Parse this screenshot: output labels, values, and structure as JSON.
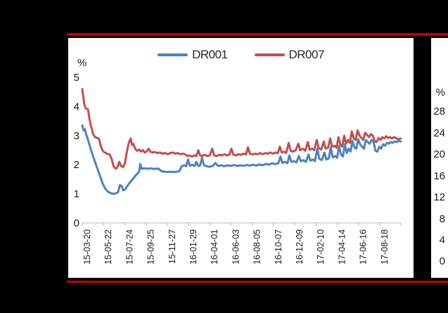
{
  "page": {
    "background": "#000000",
    "rule_color": "#CC0000"
  },
  "legend": {
    "items": [
      {
        "label": "DR001",
        "color": "#4F81BD"
      },
      {
        "label": "DR007",
        "color": "#C0504D"
      }
    ]
  },
  "left_chart": {
    "unit_label": "%"
  },
  "right_chart_fragment": {
    "unit_label": "%",
    "ticks": [
      "28",
      "24",
      "20",
      "16",
      "12",
      "8",
      "4",
      "0"
    ]
  },
  "chart_data": {
    "type": "line",
    "title": "",
    "ylabel": "%",
    "ylim": [
      0,
      5
    ],
    "grid": false,
    "legend_position": "top-center",
    "axis_color": "#C6C6C6",
    "y_axis": {
      "ticks": [
        0,
        1,
        2,
        3,
        4,
        5
      ]
    },
    "x_axis": {
      "type": "date-category",
      "range": [
        "15-03-20",
        "17-08-18"
      ],
      "tick_labels": [
        "15-03-20",
        "15-05-22",
        "15-07-24",
        "15-09-25",
        "15-11-27",
        "16-01-29",
        "16-04-01",
        "16-06-03",
        "16-08-05",
        "16-10-07",
        "16-12-09",
        "17-02-10",
        "17-04-14",
        "17-06-16",
        "17-08-18"
      ]
    },
    "series": [
      {
        "name": "DR001",
        "color": "#4F81BD",
        "points": [
          [
            0.0,
            3.35
          ],
          [
            0.004,
            3.18
          ],
          [
            0.008,
            3.22
          ],
          [
            0.012,
            3.05
          ],
          [
            0.018,
            2.85
          ],
          [
            0.025,
            2.6
          ],
          [
            0.032,
            2.35
          ],
          [
            0.04,
            2.1
          ],
          [
            0.048,
            1.85
          ],
          [
            0.056,
            1.6
          ],
          [
            0.064,
            1.35
          ],
          [
            0.072,
            1.18
          ],
          [
            0.08,
            1.08
          ],
          [
            0.09,
            1.02
          ],
          [
            0.1,
            1.0
          ],
          [
            0.108,
            1.03
          ],
          [
            0.112,
            1.05
          ],
          [
            0.118,
            1.3
          ],
          [
            0.124,
            1.26
          ],
          [
            0.128,
            1.12
          ],
          [
            0.135,
            1.16
          ],
          [
            0.142,
            1.28
          ],
          [
            0.15,
            1.4
          ],
          [
            0.158,
            1.5
          ],
          [
            0.165,
            1.6
          ],
          [
            0.172,
            1.68
          ],
          [
            0.178,
            1.75
          ],
          [
            0.182,
            2.03
          ],
          [
            0.186,
            1.86
          ],
          [
            0.195,
            1.88
          ],
          [
            0.205,
            1.86
          ],
          [
            0.215,
            1.88
          ],
          [
            0.225,
            1.85
          ],
          [
            0.232,
            1.87
          ],
          [
            0.24,
            1.86
          ],
          [
            0.248,
            1.78
          ],
          [
            0.258,
            1.76
          ],
          [
            0.268,
            1.75
          ],
          [
            0.278,
            1.76
          ],
          [
            0.288,
            1.75
          ],
          [
            0.298,
            1.76
          ],
          [
            0.305,
            1.78
          ],
          [
            0.312,
            1.95
          ],
          [
            0.32,
            1.98
          ],
          [
            0.326,
            1.95
          ],
          [
            0.332,
            2.18
          ],
          [
            0.338,
            1.96
          ],
          [
            0.345,
            2.0
          ],
          [
            0.352,
            1.96
          ],
          [
            0.358,
            2.1
          ],
          [
            0.364,
            1.96
          ],
          [
            0.37,
            1.98
          ],
          [
            0.376,
            2.24
          ],
          [
            0.382,
            1.98
          ],
          [
            0.39,
            1.95
          ],
          [
            0.4,
            1.93
          ],
          [
            0.41,
            1.96
          ],
          [
            0.418,
            2.06
          ],
          [
            0.426,
            1.96
          ],
          [
            0.436,
            1.98
          ],
          [
            0.446,
            1.95
          ],
          [
            0.456,
            1.98
          ],
          [
            0.466,
            1.96
          ],
          [
            0.476,
            1.99
          ],
          [
            0.486,
            1.96
          ],
          [
            0.496,
            1.98
          ],
          [
            0.506,
            1.96
          ],
          [
            0.516,
            1.99
          ],
          [
            0.526,
            1.97
          ],
          [
            0.536,
            2.0
          ],
          [
            0.546,
            1.97
          ],
          [
            0.556,
            2.01
          ],
          [
            0.566,
            1.98
          ],
          [
            0.576,
            2.03
          ],
          [
            0.586,
            2.0
          ],
          [
            0.596,
            2.05
          ],
          [
            0.606,
            2.02
          ],
          [
            0.616,
            2.06
          ],
          [
            0.622,
            2.28
          ],
          [
            0.628,
            2.06
          ],
          [
            0.636,
            2.1
          ],
          [
            0.644,
            2.05
          ],
          [
            0.65,
            2.32
          ],
          [
            0.656,
            2.1
          ],
          [
            0.664,
            2.12
          ],
          [
            0.672,
            2.08
          ],
          [
            0.68,
            2.3
          ],
          [
            0.686,
            2.12
          ],
          [
            0.694,
            2.16
          ],
          [
            0.702,
            2.1
          ],
          [
            0.71,
            2.35
          ],
          [
            0.716,
            2.14
          ],
          [
            0.724,
            2.18
          ],
          [
            0.73,
            2.12
          ],
          [
            0.738,
            2.55
          ],
          [
            0.744,
            2.2
          ],
          [
            0.752,
            2.16
          ],
          [
            0.76,
            2.42
          ],
          [
            0.766,
            2.18
          ],
          [
            0.774,
            2.22
          ],
          [
            0.78,
            2.6
          ],
          [
            0.786,
            2.25
          ],
          [
            0.794,
            2.3
          ],
          [
            0.8,
            2.24
          ],
          [
            0.806,
            2.65
          ],
          [
            0.812,
            2.35
          ],
          [
            0.818,
            2.28
          ],
          [
            0.824,
            2.7
          ],
          [
            0.83,
            2.4
          ],
          [
            0.836,
            2.55
          ],
          [
            0.842,
            2.45
          ],
          [
            0.848,
            2.82
          ],
          [
            0.854,
            2.6
          ],
          [
            0.86,
            2.55
          ],
          [
            0.866,
            2.88
          ],
          [
            0.872,
            2.7
          ],
          [
            0.878,
            2.62
          ],
          [
            0.884,
            2.55
          ],
          [
            0.89,
            2.85
          ],
          [
            0.896,
            2.78
          ],
          [
            0.902,
            2.72
          ],
          [
            0.908,
            2.85
          ],
          [
            0.914,
            2.8
          ],
          [
            0.92,
            2.48
          ],
          [
            0.926,
            2.45
          ],
          [
            0.932,
            2.62
          ],
          [
            0.938,
            2.55
          ],
          [
            0.944,
            2.7
          ],
          [
            0.95,
            2.65
          ],
          [
            0.956,
            2.75
          ],
          [
            0.962,
            2.72
          ],
          [
            0.968,
            2.78
          ],
          [
            0.974,
            2.75
          ],
          [
            0.98,
            2.8
          ],
          [
            0.986,
            2.78
          ],
          [
            0.992,
            2.82
          ],
          [
            1.0,
            2.8
          ]
        ]
      },
      {
        "name": "DR007",
        "color": "#C0504D",
        "points": [
          [
            0.0,
            4.6
          ],
          [
            0.003,
            4.35
          ],
          [
            0.006,
            4.1
          ],
          [
            0.01,
            3.95
          ],
          [
            0.014,
            3.92
          ],
          [
            0.018,
            3.9
          ],
          [
            0.022,
            3.6
          ],
          [
            0.028,
            3.3
          ],
          [
            0.034,
            3.05
          ],
          [
            0.04,
            2.95
          ],
          [
            0.046,
            2.92
          ],
          [
            0.052,
            2.9
          ],
          [
            0.058,
            2.65
          ],
          [
            0.064,
            2.48
          ],
          [
            0.07,
            2.42
          ],
          [
            0.078,
            2.38
          ],
          [
            0.086,
            2.35
          ],
          [
            0.092,
            2.2
          ],
          [
            0.098,
            1.95
          ],
          [
            0.104,
            1.87
          ],
          [
            0.11,
            1.9
          ],
          [
            0.116,
            2.1
          ],
          [
            0.122,
            1.95
          ],
          [
            0.128,
            1.92
          ],
          [
            0.134,
            2.05
          ],
          [
            0.14,
            2.45
          ],
          [
            0.146,
            2.75
          ],
          [
            0.152,
            2.9
          ],
          [
            0.156,
            2.68
          ],
          [
            0.16,
            2.72
          ],
          [
            0.166,
            2.55
          ],
          [
            0.172,
            2.48
          ],
          [
            0.178,
            2.52
          ],
          [
            0.184,
            2.45
          ],
          [
            0.19,
            2.5
          ],
          [
            0.196,
            2.42
          ],
          [
            0.202,
            2.46
          ],
          [
            0.208,
            2.55
          ],
          [
            0.214,
            2.45
          ],
          [
            0.22,
            2.42
          ],
          [
            0.228,
            2.44
          ],
          [
            0.236,
            2.4
          ],
          [
            0.244,
            2.42
          ],
          [
            0.252,
            2.38
          ],
          [
            0.26,
            2.4
          ],
          [
            0.268,
            2.36
          ],
          [
            0.276,
            2.4
          ],
          [
            0.284,
            2.42
          ],
          [
            0.292,
            2.38
          ],
          [
            0.3,
            2.4
          ],
          [
            0.308,
            2.36
          ],
          [
            0.316,
            2.38
          ],
          [
            0.324,
            2.35
          ],
          [
            0.33,
            2.3
          ],
          [
            0.336,
            2.32
          ],
          [
            0.344,
            2.28
          ],
          [
            0.352,
            2.32
          ],
          [
            0.358,
            2.3
          ],
          [
            0.364,
            2.5
          ],
          [
            0.37,
            2.32
          ],
          [
            0.376,
            2.3
          ],
          [
            0.384,
            2.34
          ],
          [
            0.392,
            2.3
          ],
          [
            0.4,
            2.32
          ],
          [
            0.408,
            2.55
          ],
          [
            0.414,
            2.32
          ],
          [
            0.422,
            2.3
          ],
          [
            0.43,
            2.34
          ],
          [
            0.438,
            2.32
          ],
          [
            0.446,
            2.36
          ],
          [
            0.454,
            2.32
          ],
          [
            0.462,
            2.35
          ],
          [
            0.468,
            2.55
          ],
          [
            0.474,
            2.35
          ],
          [
            0.482,
            2.32
          ],
          [
            0.49,
            2.36
          ],
          [
            0.498,
            2.34
          ],
          [
            0.506,
            2.38
          ],
          [
            0.514,
            2.35
          ],
          [
            0.52,
            2.6
          ],
          [
            0.526,
            2.38
          ],
          [
            0.534,
            2.35
          ],
          [
            0.542,
            2.38
          ],
          [
            0.55,
            2.36
          ],
          [
            0.558,
            2.4
          ],
          [
            0.566,
            2.36
          ],
          [
            0.574,
            2.4
          ],
          [
            0.582,
            2.38
          ],
          [
            0.59,
            2.42
          ],
          [
            0.598,
            2.38
          ],
          [
            0.606,
            2.42
          ],
          [
            0.614,
            2.4
          ],
          [
            0.62,
            2.62
          ],
          [
            0.626,
            2.42
          ],
          [
            0.634,
            2.45
          ],
          [
            0.64,
            2.4
          ],
          [
            0.648,
            2.75
          ],
          [
            0.654,
            2.48
          ],
          [
            0.662,
            2.45
          ],
          [
            0.67,
            2.5
          ],
          [
            0.678,
            2.72
          ],
          [
            0.684,
            2.5
          ],
          [
            0.692,
            2.55
          ],
          [
            0.7,
            2.48
          ],
          [
            0.708,
            2.78
          ],
          [
            0.714,
            2.52
          ],
          [
            0.722,
            2.55
          ],
          [
            0.728,
            2.5
          ],
          [
            0.736,
            2.85
          ],
          [
            0.742,
            2.58
          ],
          [
            0.75,
            2.52
          ],
          [
            0.758,
            2.8
          ],
          [
            0.764,
            2.55
          ],
          [
            0.772,
            2.6
          ],
          [
            0.778,
            2.9
          ],
          [
            0.784,
            2.62
          ],
          [
            0.792,
            2.65
          ],
          [
            0.798,
            2.58
          ],
          [
            0.804,
            2.95
          ],
          [
            0.81,
            2.7
          ],
          [
            0.816,
            2.62
          ],
          [
            0.822,
            3.0
          ],
          [
            0.828,
            2.72
          ],
          [
            0.834,
            2.85
          ],
          [
            0.84,
            2.75
          ],
          [
            0.846,
            3.15
          ],
          [
            0.852,
            2.9
          ],
          [
            0.858,
            2.85
          ],
          [
            0.864,
            3.18
          ],
          [
            0.87,
            3.0
          ],
          [
            0.876,
            2.92
          ],
          [
            0.882,
            2.85
          ],
          [
            0.888,
            3.1
          ],
          [
            0.894,
            3.02
          ],
          [
            0.9,
            2.95
          ],
          [
            0.906,
            3.05
          ],
          [
            0.912,
            3.0
          ],
          [
            0.918,
            2.8
          ],
          [
            0.924,
            2.78
          ],
          [
            0.93,
            2.92
          ],
          [
            0.936,
            2.85
          ],
          [
            0.942,
            2.95
          ],
          [
            0.948,
            2.9
          ],
          [
            0.954,
            2.98
          ],
          [
            0.96,
            2.92
          ],
          [
            0.966,
            2.95
          ],
          [
            0.972,
            2.9
          ],
          [
            0.978,
            2.95
          ],
          [
            0.984,
            2.92
          ],
          [
            0.99,
            2.88
          ],
          [
            1.0,
            2.9
          ]
        ]
      }
    ]
  }
}
